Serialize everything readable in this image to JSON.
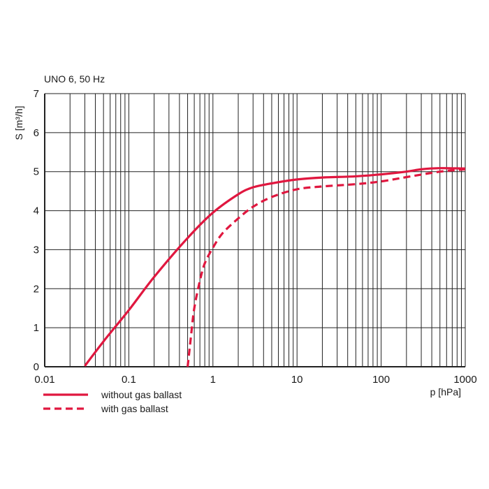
{
  "chart_data": {
    "type": "line",
    "title": "UNO 6, 50 Hz",
    "xlabel": "p [hPa]",
    "ylabel": "S [m³/h]",
    "xscale": "log",
    "xlim": [
      0.01,
      1000
    ],
    "ylim": [
      0,
      7
    ],
    "grid": true,
    "legend_position": "bottom-left",
    "x_ticks": [
      "0.01",
      "0.1",
      "1",
      "10",
      "100",
      "1000"
    ],
    "y_ticks": [
      "0",
      "1",
      "2",
      "3",
      "4",
      "5",
      "6",
      "7"
    ],
    "colors": {
      "series": "#e0173f",
      "grid": "#222222",
      "axis": "#222222"
    },
    "series": [
      {
        "name": "without gas ballast",
        "style": "solid",
        "x": [
          0.03,
          0.05,
          0.1,
          0.2,
          0.5,
          1,
          2,
          3,
          5,
          10,
          20,
          50,
          100,
          200,
          300,
          500,
          1000
        ],
        "y": [
          0.02,
          0.65,
          1.45,
          2.3,
          3.3,
          3.95,
          4.42,
          4.6,
          4.7,
          4.8,
          4.85,
          4.88,
          4.93,
          5.0,
          5.06,
          5.09,
          5.08
        ]
      },
      {
        "name": "with gas ballast",
        "style": "dashed",
        "x": [
          0.5,
          0.55,
          0.6,
          0.7,
          0.8,
          1,
          1.3,
          2,
          3,
          5,
          10,
          20,
          50,
          100,
          200,
          500,
          1000
        ],
        "y": [
          0.0,
          0.8,
          1.5,
          2.2,
          2.65,
          3.05,
          3.42,
          3.8,
          4.1,
          4.35,
          4.55,
          4.62,
          4.68,
          4.75,
          4.86,
          5.0,
          5.06
        ]
      }
    ]
  }
}
